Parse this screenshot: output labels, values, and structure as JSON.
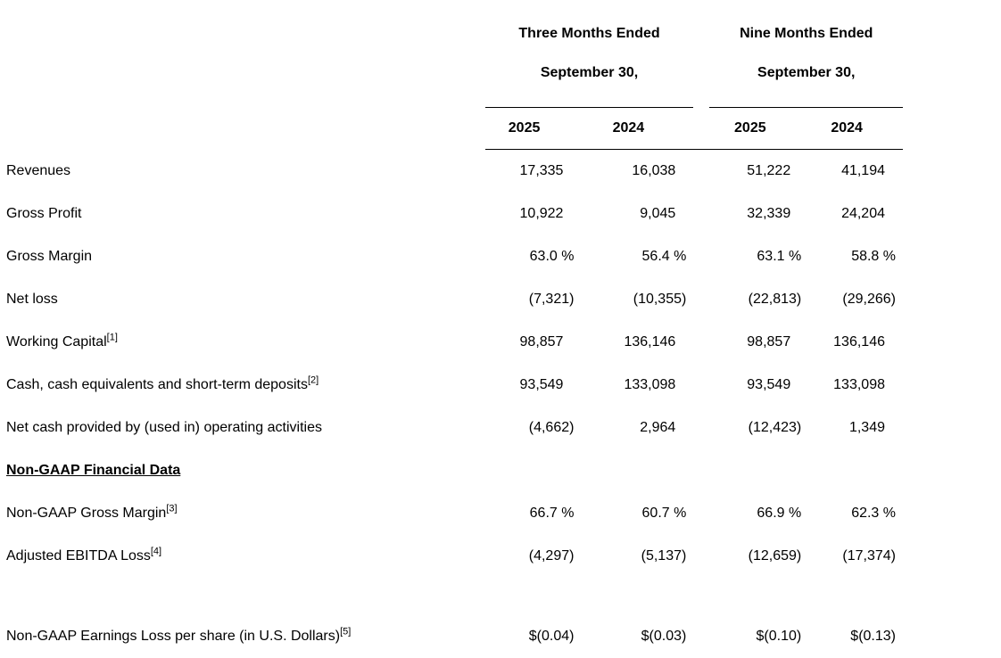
{
  "table": {
    "col_groups": [
      {
        "title": "Three Months Ended",
        "subtitle": "September 30,"
      },
      {
        "title": "Nine Months Ended",
        "subtitle": "September 30,"
      }
    ],
    "year_headers": [
      "2025",
      "2024",
      "2025",
      "2024"
    ],
    "rows": [
      {
        "type": "data",
        "label": "Revenues",
        "sup": "",
        "values": [
          "17,335",
          "16,038",
          "51,222",
          "41,194"
        ]
      },
      {
        "type": "data",
        "label": "Gross Profit",
        "sup": "",
        "values": [
          "10,922",
          "9,045",
          "32,339",
          "24,204"
        ]
      },
      {
        "type": "data",
        "label": "Gross Margin",
        "sup": "",
        "values": [
          "63.0 %",
          "56.4 %",
          "63.1 %",
          "58.8 %"
        ]
      },
      {
        "type": "data",
        "label": "Net loss",
        "sup": "",
        "values": [
          "(7,321)",
          "(10,355)",
          "(22,813)",
          "(29,266)"
        ]
      },
      {
        "type": "data",
        "label": "Working Capital",
        "sup": "[1]",
        "values": [
          "98,857",
          "136,146",
          "98,857",
          "136,146"
        ]
      },
      {
        "type": "data",
        "label": "Cash, cash equivalents and short-term deposits",
        "sup": "[2]",
        "values": [
          "93,549",
          "133,098",
          "93,549",
          "133,098"
        ]
      },
      {
        "type": "data",
        "label": "Net cash provided by (used in) operating activities",
        "sup": "",
        "values": [
          "(4,662)",
          "2,964",
          "(12,423)",
          "1,349"
        ]
      },
      {
        "type": "section",
        "label": "Non-GAAP Financial Data",
        "sup": "",
        "values": [
          "",
          "",
          "",
          ""
        ]
      },
      {
        "type": "data",
        "label": "Non-GAAP Gross Margin",
        "sup": "[3]",
        "values": [
          "66.7 %",
          "60.7 %",
          "66.9 %",
          "62.3 %"
        ]
      },
      {
        "type": "data",
        "label": "Adjusted EBITDA Loss",
        "sup": "[4]",
        "values": [
          "(4,297)",
          "(5,137)",
          "(12,659)",
          "(17,374)"
        ]
      },
      {
        "type": "spacer",
        "label": "",
        "sup": "",
        "values": [
          "",
          "",
          "",
          ""
        ]
      },
      {
        "type": "data",
        "label": "Non-GAAP Earnings Loss per share (in U.S. Dollars)",
        "sup": "[5]",
        "values": [
          "$(0.04)",
          "$(0.03)",
          "$(0.10)",
          "$(0.13)"
        ]
      }
    ]
  }
}
